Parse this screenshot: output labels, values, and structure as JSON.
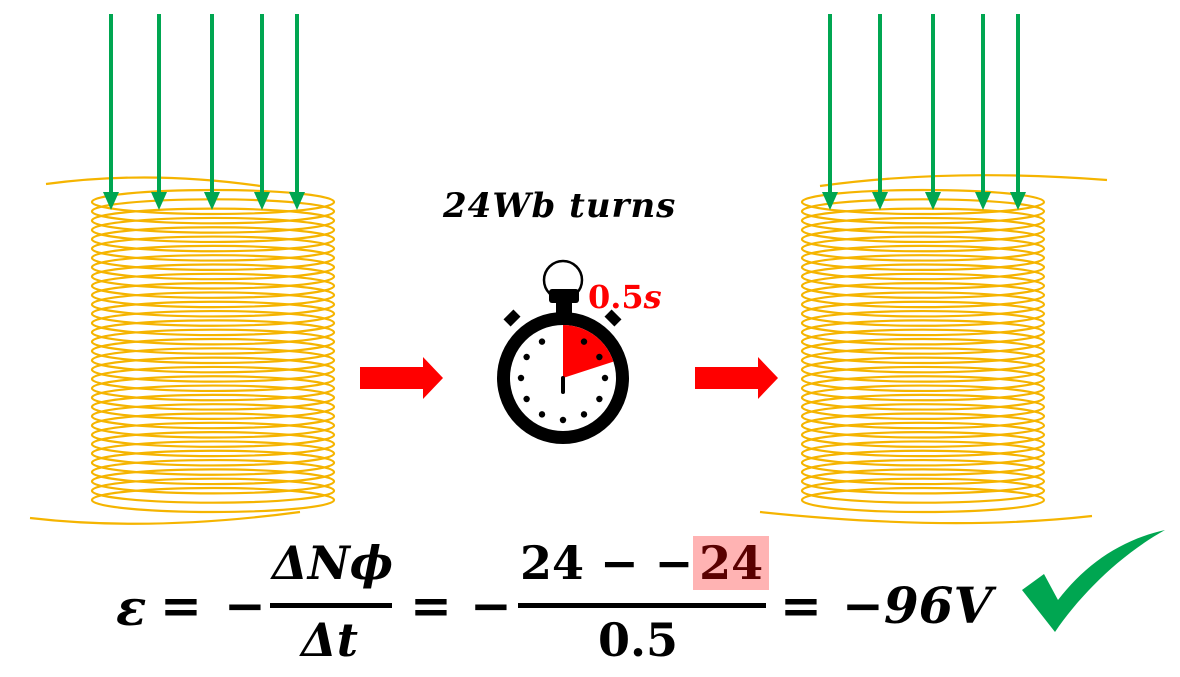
{
  "diagram": {
    "flux_label": "24Wb turns",
    "timer_label": {
      "value": "0.5",
      "unit": "s"
    },
    "timer_elapsed_fraction": 0.2,
    "colors": {
      "coil": "#f5b400",
      "field_arrow": "#00a651",
      "process_arrow": "#ff0000",
      "timer_body": "#000000",
      "timer_sector": "#ff0000",
      "check": "#00a651",
      "highlight": "#ffb3b3"
    },
    "icons": [
      "coil",
      "magnetic-field-arrow",
      "process-arrow",
      "stopwatch-icon",
      "checkmark-icon"
    ]
  },
  "equation": {
    "emf_symbol": "ε",
    "equals1": "=",
    "minus1": "−",
    "frac1_num": "ΔNϕ",
    "frac1_den": "Δt",
    "equals2": "=",
    "minus2": "−",
    "frac2_num_left": "24 − −",
    "frac2_num_highlight": "24",
    "frac2_den": "0.5",
    "equals3": "=",
    "result": "−96V"
  }
}
